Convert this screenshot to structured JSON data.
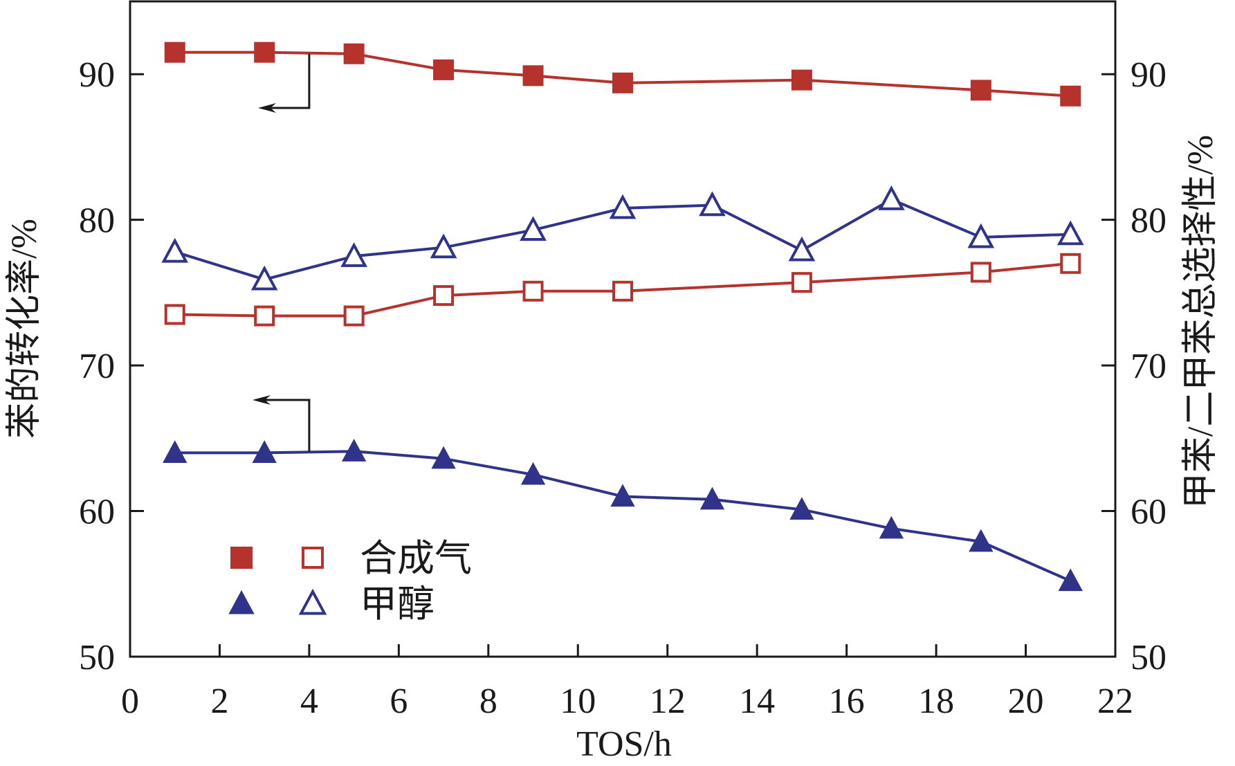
{
  "chart_data": {
    "type": "line",
    "xlabel": "TOS/h",
    "ylabel_left": "苯的转化率/%",
    "ylabel_right": "甲苯/二甲苯总选择性/%",
    "xlim": [
      0,
      22
    ],
    "ylim": [
      50,
      95
    ],
    "xticks": [
      0,
      2,
      4,
      6,
      8,
      10,
      12,
      14,
      16,
      18,
      20,
      22
    ],
    "yticks": [
      50,
      60,
      70,
      80,
      90
    ],
    "x_tick_labels": [
      "0",
      "2",
      "4",
      "6",
      "8",
      "10",
      "12",
      "14",
      "16",
      "18",
      "20",
      "22"
    ],
    "y_tick_labels": [
      "50",
      "60",
      "70",
      "80",
      "90"
    ],
    "grid": false,
    "legend_position": "lower-left",
    "colors": {
      "syngas": "#b5322d",
      "methanol": "#30338a",
      "axis": "#1a1a1a"
    },
    "series": [
      {
        "key": "syngas_conversion",
        "axis": "left",
        "marker": "square-filled",
        "color": "#b5322d",
        "x": [
          1,
          3,
          5,
          7,
          9,
          11,
          15,
          19,
          21
        ],
        "values": [
          91.5,
          91.5,
          91.4,
          90.3,
          89.9,
          89.4,
          89.6,
          88.9,
          88.5
        ]
      },
      {
        "key": "syngas_selectivity",
        "axis": "right",
        "marker": "square-open",
        "color": "#b5322d",
        "x": [
          1,
          3,
          5,
          7,
          9,
          11,
          15,
          19,
          21
        ],
        "values": [
          73.5,
          73.4,
          73.4,
          74.8,
          75.1,
          75.1,
          75.7,
          76.4,
          77.0
        ]
      },
      {
        "key": "methanol_conversion",
        "axis": "left",
        "marker": "triangle-filled",
        "color": "#30338a",
        "x": [
          1,
          3,
          5,
          7,
          9,
          11,
          13,
          15,
          17,
          19,
          21
        ],
        "values": [
          64.0,
          64.0,
          64.1,
          63.6,
          62.5,
          61.0,
          60.8,
          60.1,
          58.8,
          57.9,
          55.2
        ]
      },
      {
        "key": "methanol_selectivity",
        "axis": "right",
        "marker": "triangle-open",
        "color": "#30338a",
        "x": [
          1,
          3,
          5,
          7,
          9,
          11,
          13,
          15,
          17,
          19,
          21
        ],
        "values": [
          77.8,
          75.9,
          77.5,
          78.1,
          79.3,
          80.8,
          81.0,
          77.9,
          81.4,
          78.8,
          79.0
        ]
      }
    ],
    "legend": [
      {
        "label": "合成气",
        "markers": [
          "square-filled",
          "square-open"
        ],
        "color": "#b5322d"
      },
      {
        "label": "甲醇",
        "markers": [
          "triangle-filled",
          "triangle-open"
        ],
        "color": "#30338a"
      }
    ],
    "annotations": [
      {
        "type": "arrow-left",
        "target_series": "syngas_conversion",
        "description": "points to left axis"
      },
      {
        "type": "arrow-left",
        "target_series": "methanol_conversion",
        "description": "points to left axis"
      }
    ]
  }
}
